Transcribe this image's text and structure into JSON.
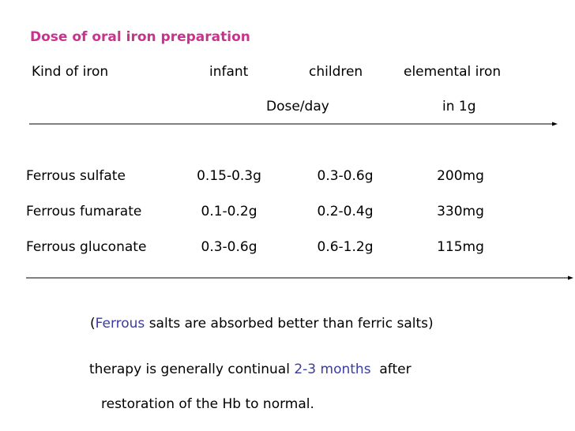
{
  "title": "Dose of oral iron preparation",
  "header": {
    "kind": "Kind of iron",
    "infant": "infant",
    "children": "children",
    "elemental": "elemental iron",
    "dose": "Dose/day",
    "per": "in 1g"
  },
  "table": {
    "rows": [
      [
        "Ferrous sulfate",
        "0.15-0.3g",
        "0.3-0.6g",
        "200mg"
      ],
      [
        "Ferrous fumarate",
        "0.1-0.2g",
        "0.2-0.4g",
        "330mg"
      ],
      [
        "Ferrous gluconate",
        "0.3-0.6g",
        "0.6-1.2g",
        "115mg"
      ]
    ]
  },
  "note": {
    "open": "(",
    "highlight": "Ferrous",
    "text": "salts are absorbed better than ferric salts",
    "close": ")"
  },
  "therapy": {
    "text": "therapy is generally continual",
    "highlight": "2-3 months",
    "after": "after",
    "line2": "restoration of the Hb to normal."
  }
}
